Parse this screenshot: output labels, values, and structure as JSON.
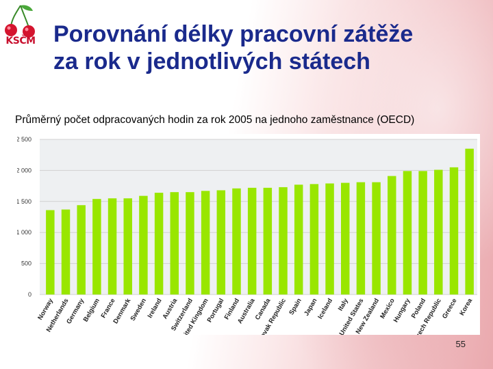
{
  "header": {
    "title_line1": "Porovnání délky pracovní zátěže",
    "title_line2": "za rok v jednotlivých státech",
    "subtitle": "Průměrný počet odpracovaných hodin za rok 2005 na jednoho zaměstnance (OECD)"
  },
  "logo": {
    "text": "KSČM",
    "icon": "cherries-logo-icon"
  },
  "footer": {
    "page_number": "55"
  },
  "colors": {
    "bar": "#99e600",
    "title": "#1a2a8c",
    "grid": "#d0d0d0"
  },
  "chart_data": {
    "type": "bar",
    "title": "",
    "xlabel": "",
    "ylabel": "",
    "ylim": [
      0,
      2500
    ],
    "yticks": [
      0,
      500,
      1000,
      1500,
      2000,
      2500
    ],
    "ytick_labels": [
      "0",
      "500",
      "1 000",
      "1 500",
      "2 000",
      "2 500"
    ],
    "grid": true,
    "categories": [
      "Norway",
      "Netherlands",
      "Germany",
      "Belgium",
      "France",
      "Denmark",
      "Sweden",
      "Ireland",
      "Austria",
      "Switzerland",
      "United Kingdom",
      "Portugal",
      "Finland",
      "Australia",
      "Canada",
      "Slovak Republic",
      "Spain",
      "Japan",
      "Iceland",
      "Italy",
      "United States",
      "New Zealand",
      "Mexico",
      "Hungary",
      "Poland",
      "Czech Republic",
      "Greece",
      "Korea"
    ],
    "values": [
      1360,
      1370,
      1440,
      1540,
      1550,
      1550,
      1590,
      1640,
      1650,
      1650,
      1670,
      1680,
      1710,
      1720,
      1720,
      1730,
      1770,
      1780,
      1790,
      1800,
      1810,
      1810,
      1910,
      1990,
      1990,
      2010,
      2050,
      2350
    ]
  }
}
